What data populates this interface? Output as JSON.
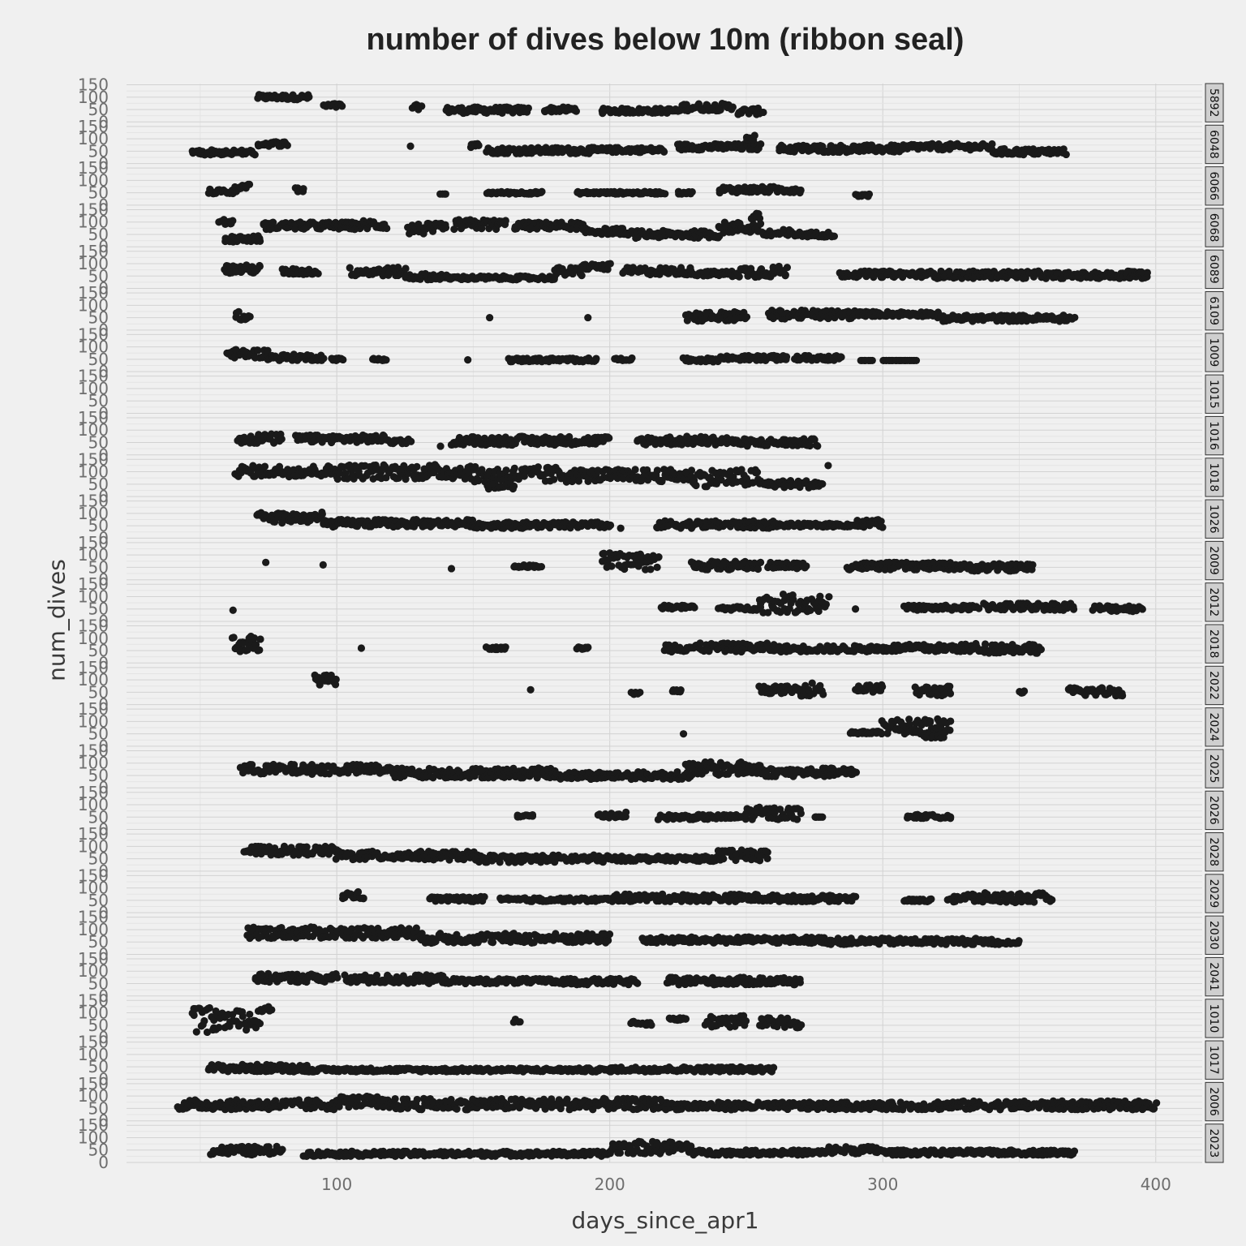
{
  "chart_data": {
    "type": "scatter",
    "title": "number of dives below 10m (ribbon seal)",
    "xlabel": "days_since_apr1",
    "ylabel": "num_dives",
    "xlim": [
      23,
      417
    ],
    "ylim": [
      0,
      155
    ],
    "x_ticks": [
      100,
      200,
      300,
      400
    ],
    "y_ticks": [
      0,
      50,
      100,
      150
    ],
    "grid": true,
    "facet": "rows",
    "facets": [
      {
        "name": "5892",
        "clusters": [
          [
            71,
            90,
            90,
            110
          ],
          [
            95,
            102,
            55,
            75
          ],
          [
            128,
            131,
            50,
            70
          ],
          [
            140,
            170,
            35,
            60
          ],
          [
            176,
            188,
            40,
            60
          ],
          [
            197,
            226,
            35,
            55
          ],
          [
            226,
            245,
            45,
            75
          ],
          [
            247,
            256,
            30,
            55
          ]
        ]
      },
      {
        "name": "6048",
        "clusters": [
          [
            47,
            70,
            55,
            35
          ],
          [
            71,
            82,
            70,
            90
          ],
          [
            127,
            127,
            70,
            70
          ],
          [
            149,
            152,
            65,
            90
          ],
          [
            155,
            200,
            40,
            65
          ],
          [
            200,
            220,
            45,
            65
          ],
          [
            225,
            255,
            55,
            80
          ],
          [
            250,
            253,
            95,
            115
          ],
          [
            262,
            310,
            45,
            75
          ],
          [
            310,
            340,
            55,
            80
          ],
          [
            340,
            367,
            35,
            60
          ]
        ]
      },
      {
        "name": "6066",
        "clusters": [
          [
            53,
            63,
            45,
            65
          ],
          [
            63,
            68,
            65,
            85
          ],
          [
            85,
            88,
            50,
            70
          ],
          [
            138,
            140,
            45,
            45
          ],
          [
            155,
            175,
            45,
            55
          ],
          [
            188,
            220,
            45,
            55
          ],
          [
            225,
            230,
            45,
            55
          ],
          [
            240,
            270,
            50,
            75
          ],
          [
            290,
            295,
            35,
            45
          ]
        ]
      },
      {
        "name": "6068",
        "clusters": [
          [
            57,
            62,
            90,
            110
          ],
          [
            59,
            72,
            20,
            45
          ],
          [
            73,
            110,
            70,
            100
          ],
          [
            110,
            118,
            70,
            110
          ],
          [
            126,
            140,
            50,
            95
          ],
          [
            143,
            162,
            70,
            110
          ],
          [
            165,
            190,
            70,
            100
          ],
          [
            190,
            205,
            50,
            75
          ],
          [
            206,
            240,
            35,
            65
          ],
          [
            240,
            255,
            55,
            100
          ],
          [
            252,
            255,
            110,
            135
          ],
          [
            256,
            268,
            35,
            70
          ],
          [
            268,
            282,
            40,
            60
          ]
        ]
      },
      {
        "name": "6089",
        "clusters": [
          [
            59,
            72,
            60,
            95
          ],
          [
            80,
            93,
            55,
            80
          ],
          [
            105,
            125,
            50,
            85
          ],
          [
            125,
            140,
            35,
            60
          ],
          [
            140,
            180,
            35,
            50
          ],
          [
            180,
            190,
            50,
            85
          ],
          [
            190,
            200,
            75,
            100
          ],
          [
            205,
            230,
            55,
            85
          ],
          [
            230,
            245,
            50,
            70
          ],
          [
            245,
            265,
            45,
            90
          ],
          [
            284,
            320,
            45,
            70
          ],
          [
            320,
            360,
            40,
            70
          ],
          [
            360,
            397,
            40,
            65
          ],
          [
            390,
            395,
            60,
            70
          ]
        ]
      },
      {
        "name": "6109",
        "clusters": [
          [
            63,
            68,
            40,
            75
          ],
          [
            156,
            156,
            50,
            50
          ],
          [
            192,
            192,
            50,
            50
          ],
          [
            228,
            250,
            35,
            75
          ],
          [
            258,
            290,
            45,
            80
          ],
          [
            290,
            320,
            55,
            75
          ],
          [
            320,
            370,
            35,
            60
          ]
        ]
      },
      {
        "name": "1009",
        "clusters": [
          [
            60,
            75,
            55,
            90
          ],
          [
            75,
            95,
            45,
            70
          ],
          [
            98,
            102,
            45,
            55
          ],
          [
            113,
            118,
            45,
            55
          ],
          [
            148,
            148,
            45,
            55
          ],
          [
            163,
            195,
            40,
            55
          ],
          [
            202,
            208,
            45,
            55
          ],
          [
            227,
            240,
            40,
            55
          ],
          [
            240,
            265,
            45,
            65
          ],
          [
            268,
            285,
            45,
            65
          ],
          [
            292,
            296,
            45,
            45
          ],
          [
            300,
            312,
            45,
            45
          ]
        ]
      },
      {
        "name": "1015",
        "clusters": []
      },
      {
        "name": "1016",
        "clusters": [
          [
            64,
            80,
            45,
            85
          ],
          [
            85,
            118,
            50,
            80
          ],
          [
            119,
            127,
            45,
            65
          ],
          [
            138,
            138,
            35,
            35
          ],
          [
            142,
            200,
            40,
            75
          ],
          [
            210,
            245,
            40,
            75
          ],
          [
            245,
            276,
            35,
            65
          ]
        ]
      },
      {
        "name": "1018",
        "clusters": [
          [
            63,
            100,
            80,
            125
          ],
          [
            100,
            150,
            70,
            130
          ],
          [
            150,
            185,
            55,
            120
          ],
          [
            185,
            230,
            60,
            110
          ],
          [
            230,
            255,
            40,
            110
          ],
          [
            255,
            278,
            35,
            65
          ],
          [
            280,
            280,
            125,
            125
          ],
          [
            155,
            165,
            30,
            50
          ]
        ]
      },
      {
        "name": "1026",
        "clusters": [
          [
            71,
            95,
            60,
            105
          ],
          [
            95,
            150,
            45,
            75
          ],
          [
            150,
            200,
            40,
            65
          ],
          [
            204,
            204,
            40,
            40
          ],
          [
            217,
            260,
            40,
            70
          ],
          [
            260,
            290,
            45,
            60
          ],
          [
            290,
            300,
            40,
            75
          ]
        ]
      },
      {
        "name": "2009",
        "clusters": [
          [
            74,
            74,
            70,
            70
          ],
          [
            95,
            95,
            60,
            60
          ],
          [
            142,
            142,
            45,
            45
          ],
          [
            165,
            175,
            50,
            60
          ],
          [
            197,
            218,
            40,
            110
          ],
          [
            230,
            255,
            40,
            75
          ],
          [
            258,
            272,
            45,
            70
          ],
          [
            287,
            330,
            40,
            70
          ],
          [
            330,
            355,
            35,
            65
          ]
        ]
      },
      {
        "name": "2012",
        "clusters": [
          [
            62,
            62,
            45,
            45
          ],
          [
            219,
            231,
            50,
            65
          ],
          [
            240,
            255,
            45,
            60
          ],
          [
            255,
            280,
            35,
            110
          ],
          [
            290,
            290,
            50,
            50
          ],
          [
            308,
            335,
            45,
            65
          ],
          [
            337,
            370,
            45,
            75
          ],
          [
            377,
            395,
            40,
            65
          ]
        ]
      },
      {
        "name": "2018",
        "clusters": [
          [
            62,
            72,
            45,
            110
          ],
          [
            109,
            109,
            60,
            60
          ],
          [
            155,
            162,
            55,
            65
          ],
          [
            188,
            192,
            55,
            65
          ],
          [
            220,
            260,
            45,
            80
          ],
          [
            260,
            300,
            45,
            70
          ],
          [
            300,
            330,
            45,
            75
          ],
          [
            330,
            358,
            40,
            80
          ]
        ]
      },
      {
        "name": "2022",
        "clusters": [
          [
            92,
            100,
            80,
            120
          ],
          [
            171,
            171,
            60,
            60
          ],
          [
            208,
            211,
            40,
            50
          ],
          [
            223,
            226,
            50,
            60
          ],
          [
            255,
            270,
            45,
            75
          ],
          [
            270,
            278,
            35,
            90
          ],
          [
            290,
            300,
            50,
            80
          ],
          [
            312,
            325,
            35,
            75
          ],
          [
            350,
            352,
            45,
            55
          ],
          [
            368,
            388,
            35,
            70
          ]
        ]
      },
      {
        "name": "2024",
        "clusters": [
          [
            227,
            227,
            50,
            50
          ],
          [
            288,
            298,
            50,
            60
          ],
          [
            298,
            325,
            50,
            110
          ],
          [
            315,
            322,
            30,
            55
          ]
        ]
      },
      {
        "name": "2025",
        "clusters": [
          [
            65,
            120,
            55,
            95
          ],
          [
            120,
            180,
            40,
            80
          ],
          [
            180,
            230,
            35,
            65
          ],
          [
            228,
            255,
            50,
            105
          ],
          [
            255,
            290,
            45,
            80
          ]
        ]
      },
      {
        "name": "2026",
        "clusters": [
          [
            166,
            172,
            50,
            60
          ],
          [
            196,
            206,
            45,
            70
          ],
          [
            218,
            250,
            40,
            60
          ],
          [
            250,
            270,
            40,
            90
          ],
          [
            275,
            278,
            50,
            50
          ],
          [
            309,
            325,
            45,
            60
          ]
        ]
      },
      {
        "name": "2028",
        "clusters": [
          [
            66,
            100,
            65,
            100
          ],
          [
            100,
            150,
            45,
            80
          ],
          [
            150,
            200,
            35,
            65
          ],
          [
            200,
            240,
            40,
            60
          ],
          [
            240,
            258,
            40,
            85
          ]
        ]
      },
      {
        "name": "2029",
        "clusters": [
          [
            102,
            110,
            55,
            85
          ],
          [
            134,
            154,
            45,
            65
          ],
          [
            160,
            200,
            45,
            60
          ],
          [
            200,
            260,
            45,
            75
          ],
          [
            260,
            290,
            45,
            70
          ],
          [
            308,
            318,
            45,
            55
          ],
          [
            324,
            362,
            40,
            80
          ]
        ]
      },
      {
        "name": "2030",
        "clusters": [
          [
            67,
            130,
            65,
            110
          ],
          [
            130,
            200,
            45,
            85
          ],
          [
            212,
            280,
            45,
            70
          ],
          [
            280,
            340,
            40,
            65
          ],
          [
            340,
            350,
            40,
            55
          ]
        ]
      },
      {
        "name": "2041",
        "clusters": [
          [
            70,
            100,
            55,
            90
          ],
          [
            103,
            140,
            50,
            85
          ],
          [
            140,
            180,
            50,
            70
          ],
          [
            180,
            210,
            45,
            70
          ],
          [
            221,
            270,
            45,
            75
          ]
        ]
      },
      {
        "name": "1010",
        "clusters": [
          [
            47,
            55,
            20,
            120
          ],
          [
            55,
            72,
            30,
            110
          ],
          [
            72,
            76,
            105,
            125
          ],
          [
            165,
            167,
            60,
            80
          ],
          [
            208,
            215,
            50,
            65
          ],
          [
            222,
            228,
            70,
            80
          ],
          [
            235,
            250,
            40,
            90
          ],
          [
            255,
            270,
            40,
            80
          ]
        ]
      },
      {
        "name": "1017",
        "clusters": [
          [
            53,
            90,
            30,
            60
          ],
          [
            88,
            200,
            30,
            45
          ],
          [
            200,
            260,
            30,
            50
          ]
        ]
      },
      {
        "name": "2006",
        "clusters": [
          [
            42,
            100,
            45,
            85
          ],
          [
            100,
            115,
            55,
            100
          ],
          [
            115,
            220,
            45,
            90
          ],
          [
            220,
            320,
            45,
            75
          ],
          [
            320,
            400,
            45,
            80
          ]
        ]
      },
      {
        "name": "2023",
        "clusters": [
          [
            54,
            80,
            30,
            65
          ],
          [
            88,
            200,
            25,
            45
          ],
          [
            200,
            230,
            35,
            85
          ],
          [
            230,
            280,
            30,
            50
          ],
          [
            280,
            300,
            35,
            65
          ],
          [
            300,
            370,
            30,
            50
          ]
        ]
      }
    ]
  }
}
